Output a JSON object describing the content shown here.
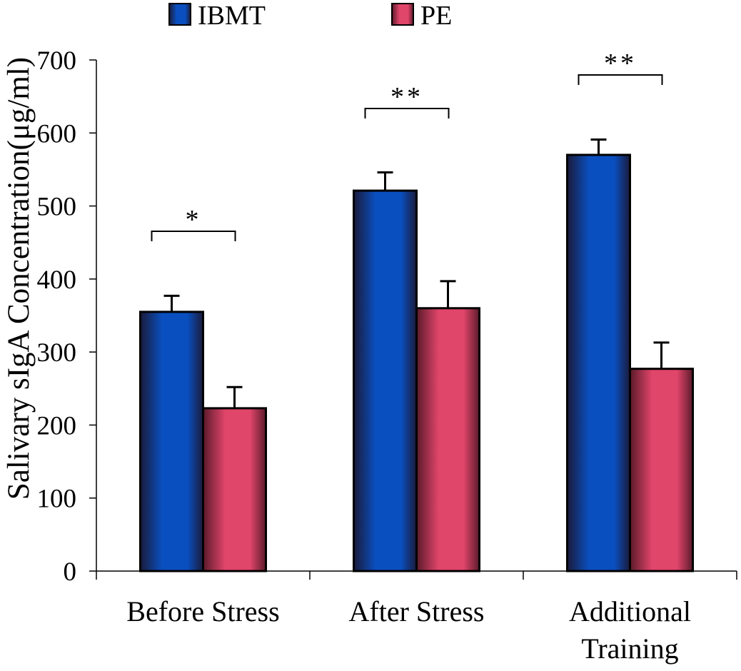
{
  "chart_data": {
    "type": "bar",
    "title": "",
    "xlabel": "",
    "ylabel": "Salivary sIgA Concentration(μg/ml)",
    "ylim": [
      0,
      700
    ],
    "yticks": [
      0,
      100,
      200,
      300,
      400,
      500,
      600,
      700
    ],
    "categories": [
      [
        "Before Stress"
      ],
      [
        "After Stress"
      ],
      [
        "Additional",
        "Training"
      ]
    ],
    "series": [
      {
        "name": "IBMT",
        "color": "#0a4fbf",
        "values": [
          355,
          521,
          570
        ],
        "errors": [
          22,
          25,
          21
        ]
      },
      {
        "name": "PE",
        "color": "#e0456a",
        "values": [
          223,
          360,
          277
        ],
        "errors": [
          29,
          37,
          36
        ]
      }
    ],
    "significance": [
      "*",
      "**",
      "**"
    ],
    "legend_position": "top"
  }
}
